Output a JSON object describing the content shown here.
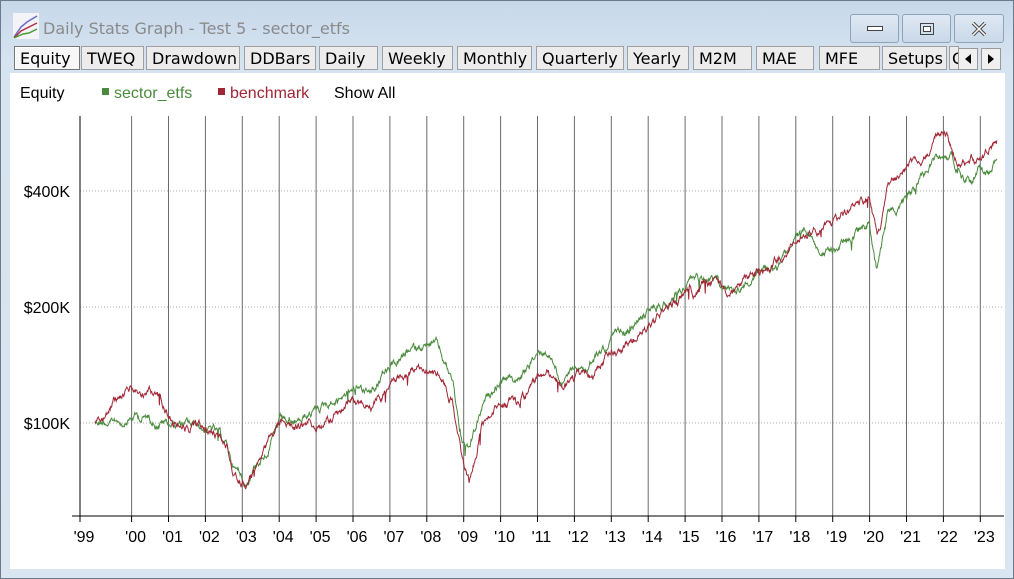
{
  "window": {
    "title": "Daily Stats Graph - Test 5 - sector_etfs",
    "buttons": {
      "minimize": "minimize",
      "maximize": "maximize",
      "close": "close"
    }
  },
  "tabs": [
    {
      "label": "Equity",
      "selected": true
    },
    {
      "label": "TWEQ"
    },
    {
      "label": "Drawdown"
    },
    {
      "label": "DDBars"
    },
    {
      "label": "Daily"
    },
    {
      "label": "Weekly"
    },
    {
      "label": "Monthly"
    },
    {
      "label": "Quarterly"
    },
    {
      "label": "Yearly"
    },
    {
      "label": "M2M"
    },
    {
      "label": "MAE"
    },
    {
      "label": "MFE"
    },
    {
      "label": "Setups"
    },
    {
      "label": "C"
    }
  ],
  "legend": {
    "title": "Equity",
    "show_all": "Show All"
  },
  "chart_data": {
    "type": "line",
    "title": "Equity",
    "yscale": "log",
    "ylim": [
      57,
      630
    ],
    "xlim": [
      1998.57,
      2023.65
    ],
    "y_ticks": [
      {
        "value": 100,
        "label": "$100K"
      },
      {
        "value": 200,
        "label": "$200K"
      },
      {
        "value": 400,
        "label": "$400K"
      }
    ],
    "x_ticks": [
      {
        "value": 1998.57,
        "label": "'99"
      },
      {
        "value": 2000,
        "label": "'00"
      },
      {
        "value": 2001,
        "label": "'01"
      },
      {
        "value": 2002,
        "label": "'02"
      },
      {
        "value": 2003,
        "label": "'03"
      },
      {
        "value": 2004,
        "label": "'04"
      },
      {
        "value": 2005,
        "label": "'05"
      },
      {
        "value": 2006,
        "label": "'06"
      },
      {
        "value": 2007,
        "label": "'07"
      },
      {
        "value": 2008,
        "label": "'08"
      },
      {
        "value": 2009,
        "label": "'09"
      },
      {
        "value": 2010,
        "label": "'10"
      },
      {
        "value": 2011,
        "label": "'11"
      },
      {
        "value": 2012,
        "label": "'12"
      },
      {
        "value": 2013,
        "label": "'13"
      },
      {
        "value": 2014,
        "label": "'14"
      },
      {
        "value": 2015,
        "label": "'15"
      },
      {
        "value": 2016,
        "label": "'16"
      },
      {
        "value": 2017,
        "label": "'17"
      },
      {
        "value": 2018,
        "label": "'18"
      },
      {
        "value": 2019,
        "label": "'19"
      },
      {
        "value": 2020,
        "label": "'20"
      },
      {
        "value": 2021,
        "label": "'21"
      },
      {
        "value": 2022,
        "label": "'22"
      },
      {
        "value": 2023,
        "label": "'23"
      }
    ],
    "grid": {
      "vertical": "yearly",
      "horizontal": "dotted"
    },
    "x": [
      1999.0,
      1999.6,
      2000.0,
      2000.6,
      2001.2,
      2001.7,
      2002.2,
      2002.6,
      2002.8,
      2003.1,
      2003.5,
      2004.0,
      2004.5,
      2005.0,
      2005.5,
      2006.0,
      2006.5,
      2007.0,
      2007.5,
      2007.9,
      2008.3,
      2008.7,
      2008.95,
      2009.15,
      2009.5,
      2010.0,
      2010.5,
      2011.0,
      2011.3,
      2011.7,
      2012.0,
      2012.5,
      2013.0,
      2013.5,
      2014.0,
      2014.5,
      2015.0,
      2015.5,
      2016.0,
      2016.5,
      2017.0,
      2017.5,
      2018.0,
      2018.5,
      2018.95,
      2019.5,
      2020.0,
      2020.2,
      2020.5,
      2021.0,
      2021.5,
      2022.0,
      2022.5,
      2022.8,
      2023.0,
      2023.3,
      2023.45
    ],
    "series": [
      {
        "name": "sector_etfs",
        "color": "#4a8a3c",
        "values": [
          101,
          104,
          105,
          103,
          100,
          97,
          96,
          86,
          76,
          72,
          83,
          99,
          99,
          108,
          115,
          125,
          125,
          137,
          150,
          159,
          155,
          129,
          90,
          86,
          108,
          129,
          129,
          150,
          155,
          129,
          140,
          146,
          164,
          174,
          196,
          208,
          228,
          242,
          221,
          228,
          246,
          262,
          308,
          298,
          273,
          308,
          327,
          249,
          336,
          390,
          453,
          510,
          453,
          427,
          453,
          439,
          481
        ]
      },
      {
        "name": "benchmark",
        "color": "#a02535",
        "values": [
          101,
          118,
          122,
          118,
          101,
          97,
          95,
          86,
          74,
          71,
          80,
          99,
          99,
          99,
          105,
          111,
          115,
          122,
          137,
          140,
          133,
          114,
          80,
          71,
          99,
          115,
          111,
          129,
          133,
          118,
          126,
          134,
          150,
          164,
          180,
          197,
          215,
          228,
          221,
          228,
          246,
          262,
          308,
          308,
          317,
          357,
          390,
          300,
          402,
          453,
          510,
          573,
          480,
          480,
          480,
          510,
          541
        ]
      }
    ]
  }
}
